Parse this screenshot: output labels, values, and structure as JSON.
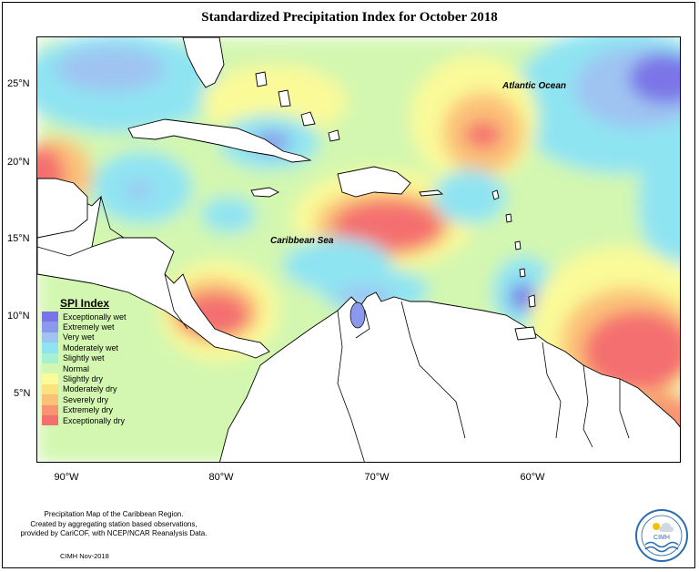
{
  "title": "Standardized Precipitation Index for October 2018",
  "map": {
    "y_axis_labels": [
      "25°N",
      "20°N",
      "15°N",
      "10°N",
      "5°N"
    ],
    "x_axis_labels": [
      "90°W",
      "80°W",
      "70°W",
      "60°W"
    ],
    "regions": {
      "atlantic": "Atlantic Ocean",
      "caribbean": "Caribbean Sea"
    }
  },
  "legend": {
    "title": "SPI Index",
    "items": [
      {
        "label": "Exceptionally wet",
        "color": "#7b74e8"
      },
      {
        "label": "Extremely wet",
        "color": "#8b99ec"
      },
      {
        "label": "Very wet",
        "color": "#9fc4f2"
      },
      {
        "label": "Moderately wet",
        "color": "#8fe4f2"
      },
      {
        "label": "Slightly wet",
        "color": "#a6f0d4"
      },
      {
        "label": "Normal",
        "color": "#d3f7b0"
      },
      {
        "label": "Slightly dry",
        "color": "#fafa98"
      },
      {
        "label": "Moderately dry",
        "color": "#fbe27f"
      },
      {
        "label": "Severely dry",
        "color": "#fbc178"
      },
      {
        "label": "Extremely dry",
        "color": "#f89570"
      },
      {
        "label": "Exceptionally dry",
        "color": "#f47070"
      }
    ]
  },
  "credits": {
    "line1": "Precipitation Map of the Caribbean Region.",
    "line2": "Created by aggregating station based observations,",
    "line3": "provided by CariCOF, with NCEP/NCAR Reanalysis Data.",
    "date": "CIMH Nov-2018"
  },
  "logo": {
    "text": "CIMH"
  }
}
